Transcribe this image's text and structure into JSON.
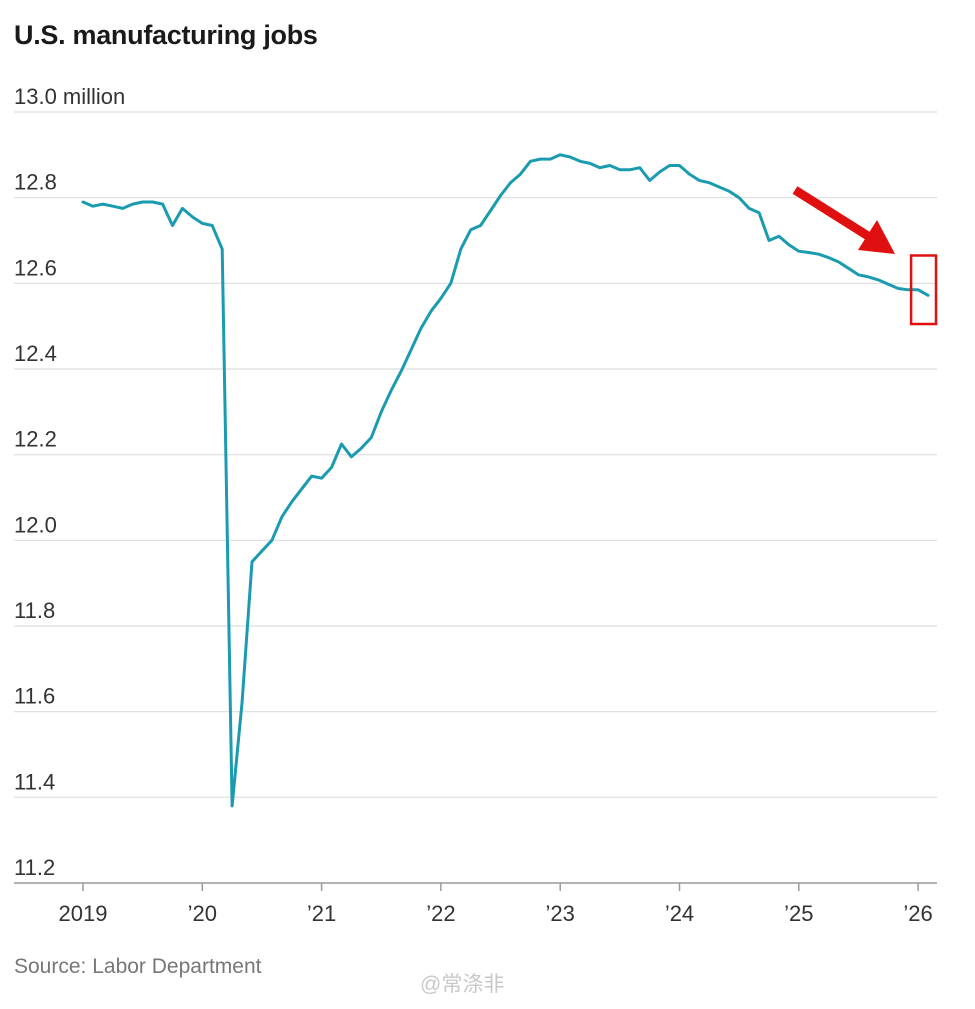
{
  "watermark": "@常涤非",
  "chart_data": {
    "type": "line",
    "title": "U.S. manufacturing jobs",
    "source": "Source: Labor Department",
    "units": "million",
    "ylim": [
      11.2,
      13.0
    ],
    "y_ticks": [
      13.0,
      12.8,
      12.6,
      12.4,
      12.2,
      12.0,
      11.8,
      11.6,
      11.4,
      11.2
    ],
    "y_tick_labels": [
      "13.0 million",
      "12.8",
      "12.6",
      "12.4",
      "12.2",
      "12.0",
      "11.8",
      "11.6",
      "11.4",
      "11.2"
    ],
    "x_ticks": [
      2019,
      2020,
      2021,
      2022,
      2023,
      2024,
      2025,
      2026
    ],
    "x_tick_labels": [
      "2019",
      "’20",
      "’21",
      "’22",
      "’23",
      "’24",
      "’25",
      "’26"
    ],
    "grid": true,
    "series": [
      {
        "name": "U.S. manufacturing jobs",
        "color": "#1a9bb0",
        "x": [
          2019.0,
          2019.083,
          2019.167,
          2019.25,
          2019.333,
          2019.417,
          2019.5,
          2019.583,
          2019.667,
          2019.75,
          2019.833,
          2019.917,
          2020.0,
          2020.083,
          2020.167,
          2020.25,
          2020.333,
          2020.417,
          2020.5,
          2020.583,
          2020.667,
          2020.75,
          2020.833,
          2020.917,
          2021.0,
          2021.083,
          2021.167,
          2021.25,
          2021.333,
          2021.417,
          2021.5,
          2021.583,
          2021.667,
          2021.75,
          2021.833,
          2021.917,
          2022.0,
          2022.083,
          2022.167,
          2022.25,
          2022.333,
          2022.417,
          2022.5,
          2022.583,
          2022.667,
          2022.75,
          2022.833,
          2022.917,
          2023.0,
          2023.083,
          2023.167,
          2023.25,
          2023.333,
          2023.417,
          2023.5,
          2023.583,
          2023.667,
          2023.75,
          2023.833,
          2023.917,
          2024.0,
          2024.083,
          2024.167,
          2024.25,
          2024.333,
          2024.417,
          2024.5,
          2024.583,
          2024.667,
          2024.75,
          2024.833,
          2024.917,
          2025.0,
          2025.083,
          2025.167,
          2025.25,
          2025.333,
          2025.417,
          2025.5,
          2025.583,
          2025.667,
          2025.75,
          2025.833,
          2025.917,
          2026.0,
          2026.083
        ],
        "values": [
          12.79,
          12.78,
          12.785,
          12.78,
          12.775,
          12.785,
          12.79,
          12.79,
          12.785,
          12.735,
          12.775,
          12.755,
          12.74,
          12.735,
          12.68,
          11.38,
          11.62,
          11.95,
          11.975,
          12.0,
          12.055,
          12.09,
          12.12,
          12.15,
          12.145,
          12.17,
          12.225,
          12.195,
          12.215,
          12.24,
          12.3,
          12.35,
          12.395,
          12.445,
          12.495,
          12.535,
          12.565,
          12.6,
          12.68,
          12.725,
          12.735,
          12.77,
          12.805,
          12.835,
          12.855,
          12.885,
          12.89,
          12.89,
          12.9,
          12.895,
          12.885,
          12.88,
          12.87,
          12.875,
          12.865,
          12.865,
          12.87,
          12.84,
          12.86,
          12.875,
          12.875,
          12.855,
          12.84,
          12.835,
          12.825,
          12.815,
          12.8,
          12.775,
          12.765,
          12.7,
          12.71,
          12.69,
          12.675,
          12.672,
          12.668,
          12.66,
          12.65,
          12.635,
          12.62,
          12.615,
          12.608,
          12.598,
          12.588,
          12.585,
          12.585,
          12.572
        ]
      }
    ],
    "annotations": [
      {
        "type": "arrow",
        "color": "#e01010",
        "label": ""
      },
      {
        "type": "highlight-box",
        "color": "#e01010",
        "label": ""
      }
    ]
  }
}
